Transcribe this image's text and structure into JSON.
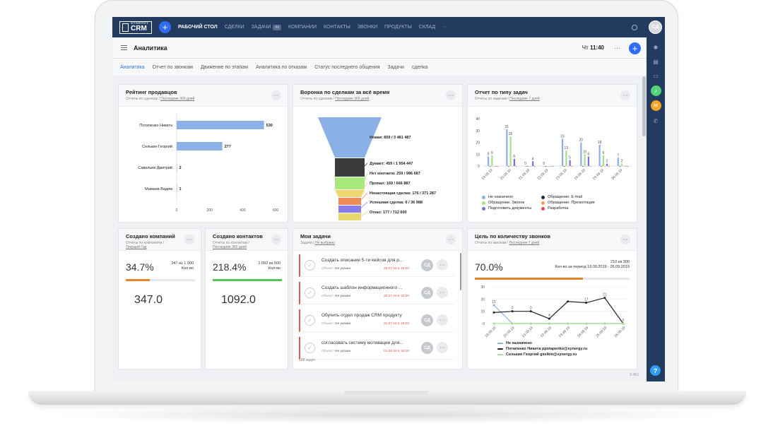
{
  "nav": {
    "logo_top": "SYNERGY",
    "logo_main": "CRM",
    "plus": "+",
    "items": [
      {
        "label": "РАБОЧИЙ СТОЛ",
        "active": true
      },
      {
        "label": "СДЕЛКИ"
      },
      {
        "label": "ЗАДАЧИ",
        "badge": "44"
      },
      {
        "label": "КОМПАНИИ"
      },
      {
        "label": "КОНТАКТЫ"
      },
      {
        "label": "ЗВОНКИ"
      },
      {
        "label": "ПРОДУКТЫ"
      },
      {
        "label": "СКЛАД"
      },
      {
        "label": "···"
      }
    ],
    "avatar": "СД"
  },
  "header": {
    "title": "Аналитика",
    "day": "Чт",
    "time": "11:40",
    "more": "···",
    "plus": "+"
  },
  "tabs": [
    "Аналитика",
    "Отчет по звонкам",
    "Движение по этапам",
    "Аналитика по отказам",
    "Статус последнего общения",
    "Задачи",
    "сделка"
  ],
  "rightbar": {
    "help": "?"
  },
  "cards": {
    "sellers": {
      "title": "Рейтинг продавцов",
      "sub_prefix": "Отчеты по сделкам / ",
      "sub_link": "Последние 365 дней",
      "more": "···"
    },
    "funnel": {
      "title": "Воронка по сделкам за всё время",
      "sub_prefix": "Отчеты по сделкам / ",
      "sub_link": "Последние 365 дней",
      "more": "···"
    },
    "tasktype": {
      "title": "Отчет по типу задач",
      "sub_prefix": "Отчеты по задачам / ",
      "sub_link": "Последние 7 дней",
      "more": "···"
    },
    "companies": {
      "title": "Создано компаний",
      "sub_prefix": "Отчеты по компаниям / ",
      "sub_link": "Текущий Год",
      "more": "···",
      "percent": "34.7%",
      "ratio": "347 из 1 000",
      "ratio_label": "Кол-во",
      "value": "347.0",
      "progress": 0.347,
      "color": "#e8832a"
    },
    "contacts": {
      "title": "Создано контактов",
      "sub_prefix": "Отчеты по контактам / ",
      "sub_link": "Последние 365 дней",
      "more": "···",
      "percent": "218.4%",
      "ratio": "1 092 из 500",
      "ratio_label": "Кол-во",
      "value": "1092.0",
      "progress": 1.0,
      "color": "#54c257"
    },
    "mytasks": {
      "title": "Мои задачи",
      "sub_prefix": "Задачи / ",
      "sub_link": "Не выбрано",
      "more": "···",
      "footer": "188 задач",
      "items": [
        {
          "title": "Создать описание 5-ти кейсов для р...",
          "meta_label": "Объект:",
          "meta_value": "Не указан",
          "date": "30.07.19 в 18:00",
          "avatar": "СД"
        },
        {
          "title": "Создать шаблон информационного ...",
          "meta_label": "Объект:",
          "meta_value": "Не указан",
          "date": "30.07.19 в 18:00",
          "avatar": "СД"
        },
        {
          "title": "Обучить отдел продаж CRM продукту",
          "meta_label": "Объект:",
          "meta_value": "Не указан",
          "date": "31.07.19 в 18:00",
          "avatar": "СД"
        },
        {
          "title": "согласовать систему мотивации для...",
          "meta_label": "Объект:",
          "meta_value": "Не указан",
          "date": "01.08.19 в 18:00",
          "avatar": "СД"
        }
      ]
    },
    "calls": {
      "title": "Цель по количеству звонков",
      "sub_prefix": "Отчеты по звонкам / ",
      "sub_link": "Последние 7 дней",
      "more": "···",
      "percent": "70.0%",
      "ratio": "210 из 300",
      "period": "Кол-во за период 19.09.2019 - 26.09.2019",
      "progress": 0.7,
      "color": "#e8832a"
    }
  },
  "version": "2-453",
  "chart_data": [
    {
      "type": "bar",
      "orientation": "horizontal",
      "categories": [
        "Потапенко Никита",
        "Селькин Георгий",
        "Савельев Дмитрий",
        "Мамаев Вадим"
      ],
      "values": [
        530,
        277,
        2,
        1
      ],
      "xticks": [
        "0",
        "200",
        "400",
        "600"
      ],
      "xlim": [
        0,
        600
      ],
      "color": "#8ab0e6"
    },
    {
      "type": "funnel",
      "stages": [
        {
          "label": "Новая: 859 / 3 481 487",
          "color": "#8ab0e6"
        },
        {
          "label": "Думает: 459 / 1 954 447",
          "color": "#3b3b3b"
        },
        {
          "label": "Нет контакта: 259 / 986 687",
          "color": "#a9e87a"
        },
        {
          "label": "Пропал: 169 / 666 887",
          "color": "#f0d66e"
        },
        {
          "label": "Ненастоящая сделка: 176 / 371 287",
          "color": "#ef8a5a"
        },
        {
          "label": "Успешная сделка: 6 / 36 988",
          "color": "#8a7bea"
        },
        {
          "label": "Отказ: 177 / 712 600",
          "color": "#e8d96e"
        }
      ]
    },
    {
      "type": "bar",
      "categories": [
        "19.09.19",
        "20.09.19",
        "21.09.19",
        "22.09.19",
        "23.09.19",
        "24.09.19",
        "25.09.19",
        "26.09.19"
      ],
      "yticks": [
        "0",
        "10",
        "20",
        "30",
        "40"
      ],
      "ylim": [
        0,
        40
      ],
      "series": [
        {
          "name": "Не назначено",
          "color": "#8ab0e6",
          "values": [
            8,
            31,
            0,
            0,
            23,
            20,
            18,
            7
          ]
        },
        {
          "name": "Обращение. E-mail",
          "color": "#2a2a2a",
          "values": [
            0,
            0,
            0,
            0,
            0,
            0,
            0,
            0
          ]
        },
        {
          "name": "Обращение. Звонок",
          "color": "#a6e08a",
          "values": [
            9,
            25,
            0,
            0,
            13,
            10,
            9,
            2
          ]
        },
        {
          "name": "Обращение. Презентация",
          "color": "#f0a050",
          "values": [
            0,
            0,
            0,
            0,
            0,
            0,
            0,
            0
          ]
        },
        {
          "name": "Подготовить документы",
          "color": "#7b6fe0",
          "values": [
            0,
            6,
            4,
            0,
            5,
            8,
            2,
            0
          ]
        },
        {
          "name": "Разработка",
          "color": "#e04a5a",
          "values": [
            0,
            0,
            0,
            0,
            0,
            0,
            0,
            0
          ]
        }
      ],
      "legend_columns": [
        [
          "Не назначено",
          "Обращение. Звонок",
          "Подготовить документы"
        ],
        [
          "Обращение. E-mail",
          "Обращение. Презентация",
          "Разработка"
        ]
      ]
    },
    {
      "type": "line",
      "categories": [
        "19.09.19",
        "20.09.19",
        "21.09.19",
        "22.09.19",
        "23.09.19",
        "24.09.19",
        "25.09.19",
        "26.09.19"
      ],
      "yticks": [
        "0",
        "10",
        "20",
        "30"
      ],
      "ylim": [
        0,
        30
      ],
      "series": [
        {
          "name": "Не назначено",
          "color": "#8ab0e6",
          "values": [
            15,
            0,
            0,
            0,
            0,
            0,
            0,
            0
          ]
        },
        {
          "name": "Потапенко Никита ppotapenko@synergy.ru",
          "color": "#222222",
          "values": [
            9,
            10,
            10,
            4,
            18,
            17,
            21,
            0
          ]
        },
        {
          "name": "Селькин Георгий gselkin@synergy.ru",
          "color": "#a6e08a",
          "values": [
            0,
            0,
            0,
            0,
            0,
            0,
            0,
            0
          ]
        }
      ],
      "point_labels": [
        {
          "i": 0,
          "text": "15"
        },
        {
          "i": 1,
          "text": "0"
        },
        {
          "i": 2,
          "text": "0"
        },
        {
          "i": 3,
          "text": "4"
        },
        {
          "i": 5,
          "text": "17"
        },
        {
          "i": 6,
          "text": "21"
        },
        {
          "i": 7,
          "text": "0"
        }
      ]
    }
  ]
}
